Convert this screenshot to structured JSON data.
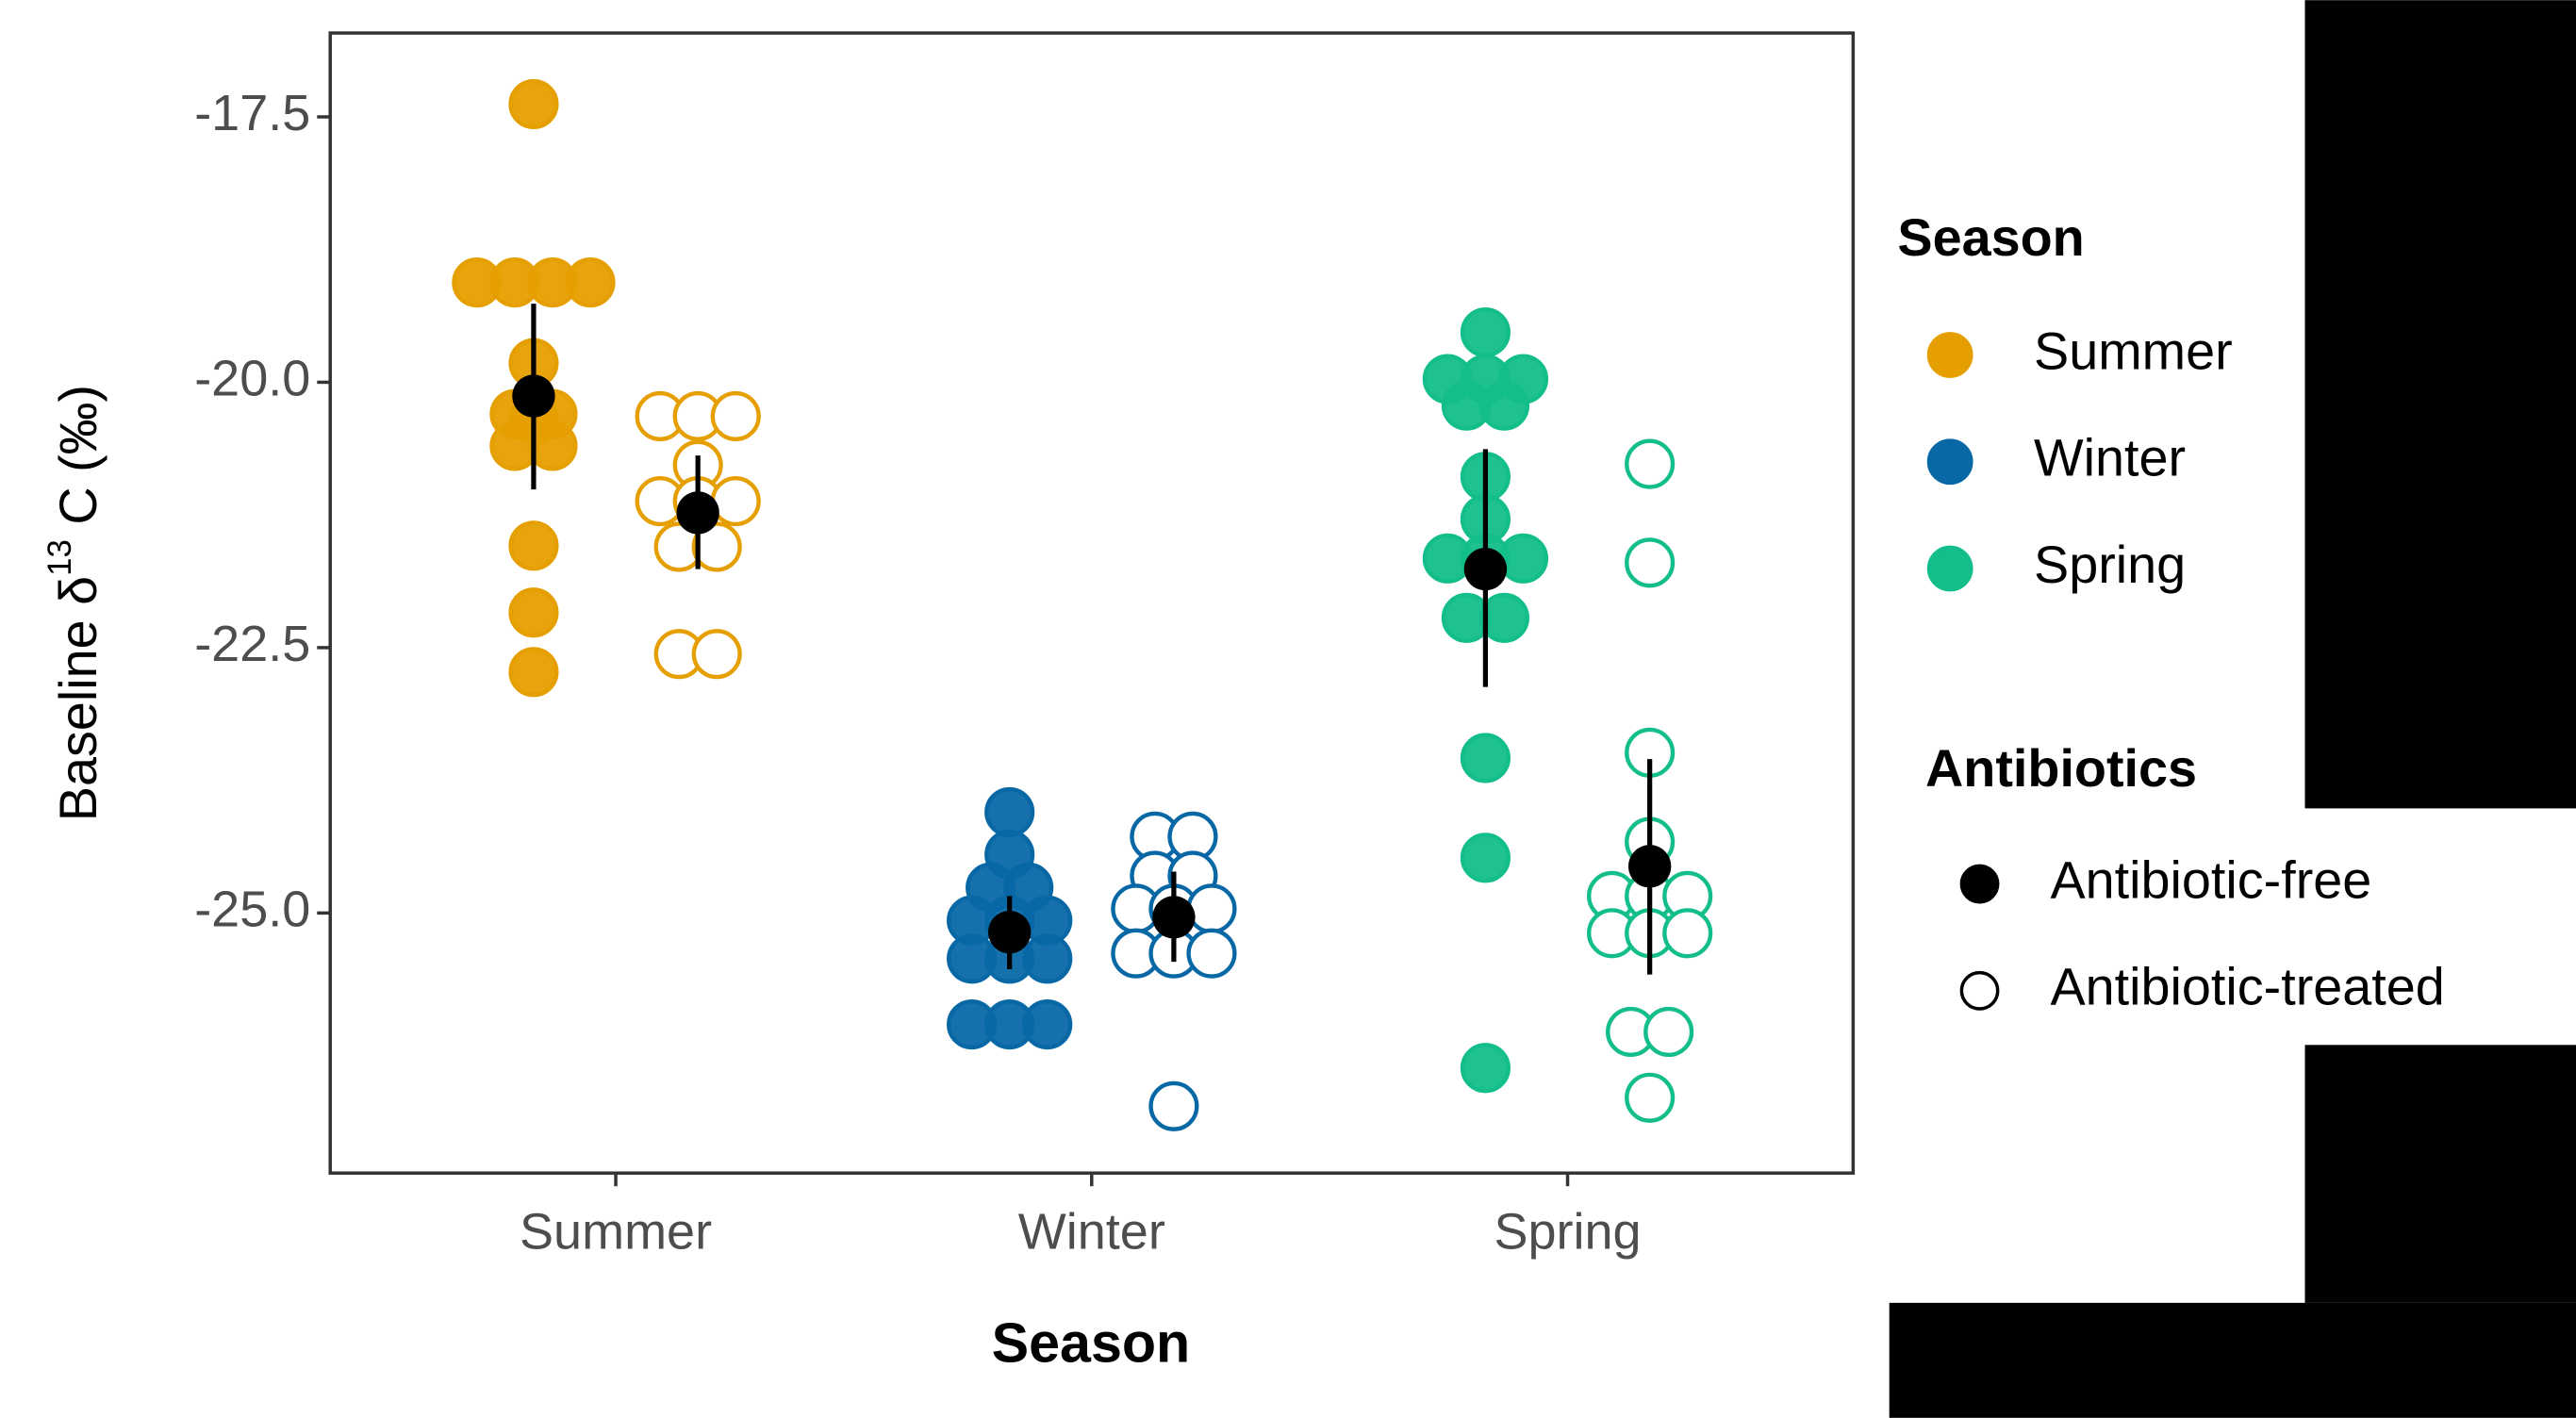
{
  "chart_data": {
    "type": "dotplot",
    "xlabel": "Season",
    "ylabel": [
      "Baseline δ",
      "13",
      " C (‰)"
    ],
    "categories": [
      "Summer",
      "Winter",
      "Spring"
    ],
    "ylim": [
      -27.45,
      -16.71
    ],
    "yticks": [
      -17.5,
      {
        "value": -20,
        "label": "-20.0"
      },
      -22.5,
      {
        "value": -25,
        "label": "-25.0"
      }
    ],
    "legends": [
      {
        "title": "Season",
        "entries": [
          {
            "name": "Summer",
            "color": "#E69F00"
          },
          {
            "name": "Winter",
            "color": "#0868A6"
          },
          {
            "name": "Spring",
            "color": "#14BE8A"
          }
        ]
      },
      {
        "title": "Antibiotics",
        "entries": [
          {
            "name": "Antibiotic-free",
            "filled": true
          },
          {
            "name": "Antibiotic-treated",
            "filled": false
          }
        ]
      }
    ],
    "groups": [
      [
        {
          "values": [
            -17.38,
            -19.06,
            -19.06,
            -19.06,
            -19.06,
            -19.82,
            -20.3,
            -20.3,
            -20.35,
            -20.6,
            -20.6,
            -21.54,
            -22.17,
            -22.73
          ],
          "mean": -20.13,
          "lower": -21.01,
          "upper": -19.26
        },
        {
          "values": [
            -20.32,
            -20.32,
            -20.32,
            -20.78,
            -21.12,
            -21.12,
            -21.12,
            -21.55,
            -21.55,
            -22.56,
            -22.56
          ],
          "mean": -21.23,
          "lower": -21.76,
          "upper": -20.69
        }
      ],
      [
        {
          "values": [
            -24.05,
            -24.45,
            -24.76,
            -24.76,
            -25.07,
            -25.07,
            -25.07,
            -25.43,
            -25.43,
            -25.43,
            -26.05,
            -26.05,
            -26.05
          ],
          "mean": -25.18,
          "lower": -25.53,
          "upper": -24.84
        },
        {
          "values": [
            -24.28,
            -24.28,
            -24.65,
            -24.65,
            -24.96,
            -24.96,
            -24.96,
            -25.38,
            -25.38,
            -25.38,
            -26.82
          ],
          "mean": -25.04,
          "lower": -25.46,
          "upper": -24.61
        }
      ],
      [
        {
          "values": [
            -19.53,
            -19.97,
            -19.97,
            -19.97,
            -20.22,
            -20.22,
            -20.89,
            -21.29,
            -21.66,
            -21.66,
            -21.66,
            -22.22,
            -22.22,
            -23.54,
            -24.48,
            -26.46
          ],
          "mean": -21.76,
          "lower": -22.87,
          "upper": -20.63
        },
        {
          "values": [
            -20.77,
            -21.7,
            -23.49,
            -24.33,
            -24.84,
            -24.84,
            -24.84,
            -25.19,
            -25.19,
            -25.19,
            -26.12,
            -26.12,
            -26.74
          ],
          "mean": -24.56,
          "lower": -25.58,
          "upper": -23.55
        }
      ]
    ]
  }
}
